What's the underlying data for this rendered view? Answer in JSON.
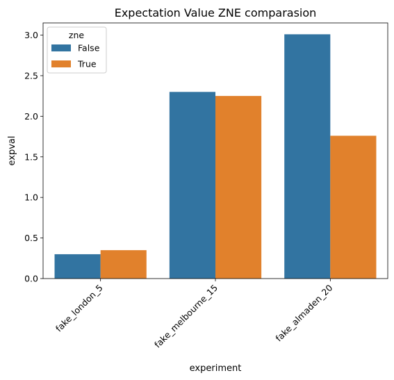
{
  "chart_data": {
    "type": "bar",
    "title": "Expectation Value ZNE comparasion",
    "xlabel": "experiment",
    "ylabel": "expval",
    "categories": [
      "fake_london_5",
      "fake_melbourne_15",
      "fake_almaden_20"
    ],
    "series": [
      {
        "name": "False",
        "color": "#3274a1",
        "values": [
          0.3,
          2.3,
          3.01
        ]
      },
      {
        "name": "True",
        "color": "#e1812c",
        "values": [
          0.35,
          2.25,
          1.76
        ]
      }
    ],
    "ylim": [
      0,
      3.15
    ],
    "yticks": [
      "0.0",
      "0.5",
      "1.0",
      "1.5",
      "2.0",
      "2.5",
      "3.0"
    ],
    "legend": {
      "title": "zne",
      "position": "top-left"
    },
    "grid": false
  }
}
